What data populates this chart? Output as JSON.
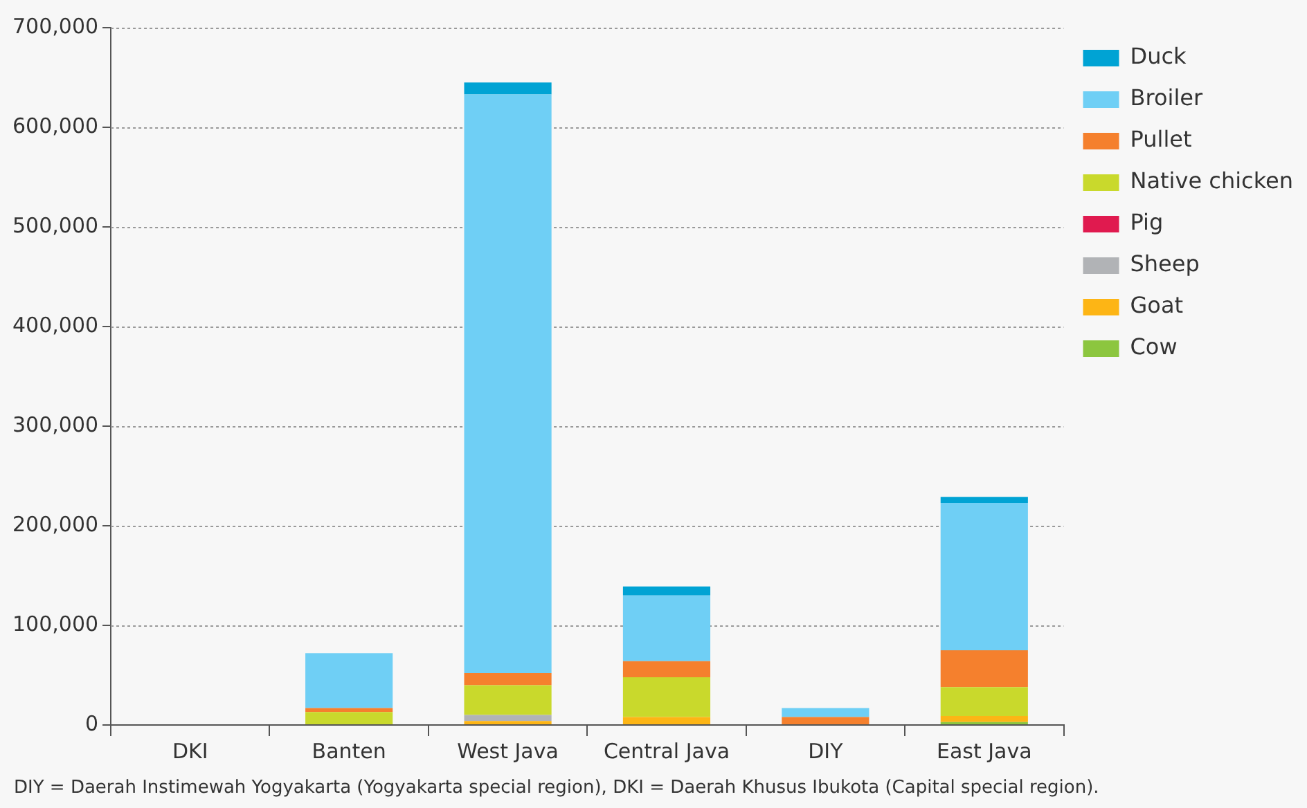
{
  "chart_data": {
    "type": "bar",
    "stacked": true,
    "categories": [
      "DKI",
      "Banten",
      "West Java",
      "Central Java",
      "DIY",
      "East Java"
    ],
    "series": [
      {
        "name": "Cow",
        "color": "#8cc63f",
        "values": [
          0,
          null,
          0,
          0,
          0,
          3000
        ]
      },
      {
        "name": "Goat",
        "color": "#fdb515",
        "values": [
          0,
          0,
          4000,
          8000,
          0,
          6000
        ]
      },
      {
        "name": "Sheep",
        "color": "#b1b3b6",
        "values": [
          0,
          0,
          6000,
          0,
          0,
          0
        ]
      },
      {
        "name": "Pig",
        "color": "#e01a4f",
        "values": [
          0,
          0,
          0,
          0,
          0,
          0
        ]
      },
      {
        "name": "Native chicken",
        "color": "#c9d92c",
        "values": [
          0,
          13000,
          30000,
          40000,
          0,
          29000
        ]
      },
      {
        "name": "Pullet",
        "color": "#f5802d",
        "values": [
          0,
          4000,
          12000,
          16000,
          8000,
          37000
        ]
      },
      {
        "name": "Broiler",
        "color": "#6fcff5",
        "values": [
          0,
          55000,
          581000,
          66000,
          9000,
          148000
        ]
      },
      {
        "name": "Duck",
        "color": "#00a3d4",
        "values": [
          0,
          0,
          12000,
          9000,
          0,
          6000
        ]
      }
    ],
    "ylim": [
      0,
      700000
    ],
    "yticks": [
      0,
      {
        "value": 100000,
        "label": "100,000"
      },
      {
        "value": 200000,
        "label": "200,000"
      },
      {
        "value": 300000,
        "label": "300,000"
      },
      {
        "value": 400000,
        "label": "400,000"
      },
      {
        "value": 500000,
        "label": "500,000"
      },
      {
        "value": 600000,
        "label": "600,000"
      },
      {
        "value": 700000,
        "label": "700,000"
      }
    ],
    "grid": "y",
    "legend": "right",
    "annotations": [
      "DIY = Daerah Instimewah Yogyakarta (Yogyakarta special region), DKI = Daerah Khusus Ibukota (Capital special region)."
    ]
  }
}
